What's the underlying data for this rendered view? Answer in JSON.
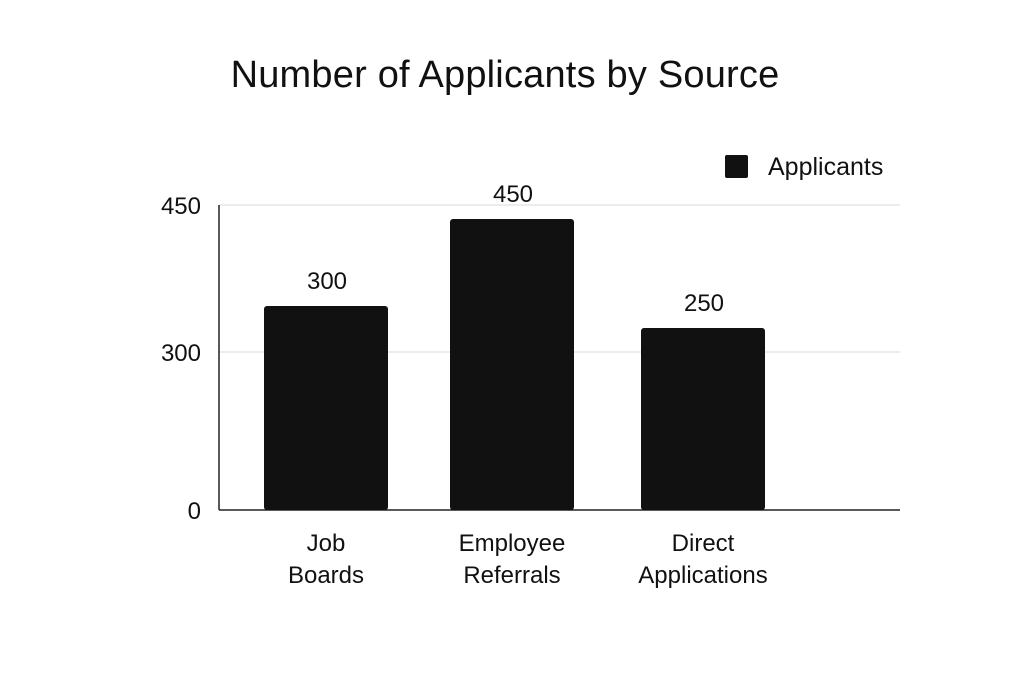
{
  "chart_data": {
    "type": "bar",
    "title": "Number of Applicants by Source",
    "categories": [
      "Job Boards",
      "Employee Referrals",
      "Direct Applications"
    ],
    "category_lines": [
      [
        "Job",
        "Boards"
      ],
      [
        "Employee",
        "Referrals"
      ],
      [
        "Direct",
        "Applications"
      ]
    ],
    "series": [
      {
        "name": "Applicants",
        "values": [
          300,
          450,
          250
        ],
        "color": "#111111"
      }
    ],
    "data_labels": [
      "300",
      "450",
      "250"
    ],
    "y_ticks": [
      0,
      300,
      450
    ],
    "ylim": [
      0,
      450
    ],
    "grid": true,
    "legend": "top-right",
    "xlabel": "",
    "ylabel": ""
  }
}
